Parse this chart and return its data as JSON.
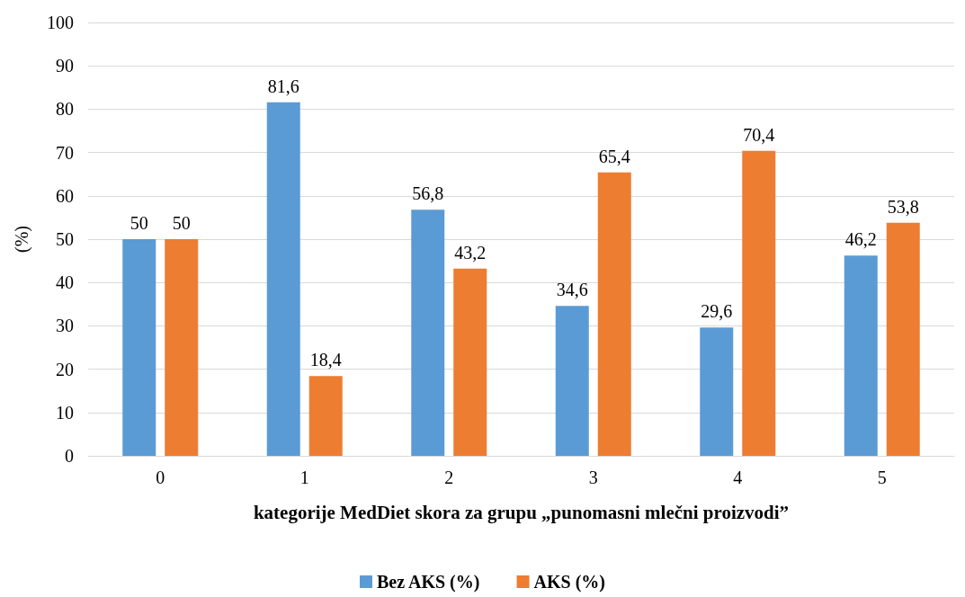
{
  "chart_data": {
    "type": "bar",
    "xlabel": "kategorije MedDiet skora za grupu „punomasni mlečni proizvodi”",
    "ylabel": "(%)",
    "categories": [
      "0",
      "1",
      "2",
      "3",
      "4",
      "5"
    ],
    "series": [
      {
        "name": "Bez AKS (%)",
        "color": "#5b9bd5",
        "values": [
          50,
          81.6,
          56.8,
          34.6,
          29.6,
          46.2
        ],
        "value_labels": [
          "50",
          "81,6",
          "56,8",
          "34,6",
          "29,6",
          "46,2"
        ]
      },
      {
        "name": "AKS (%)",
        "color": "#ed7d31",
        "values": [
          50,
          18.4,
          43.2,
          65.4,
          70.4,
          53.8
        ],
        "value_labels": [
          "50",
          "18,4",
          "43,2",
          "65,4",
          "70,4",
          "53,8"
        ]
      }
    ],
    "ylim": [
      0,
      100
    ],
    "yticks": [
      0,
      10,
      20,
      30,
      40,
      50,
      60,
      70,
      80,
      90,
      100
    ],
    "grid": "y",
    "legend": "bottom"
  }
}
